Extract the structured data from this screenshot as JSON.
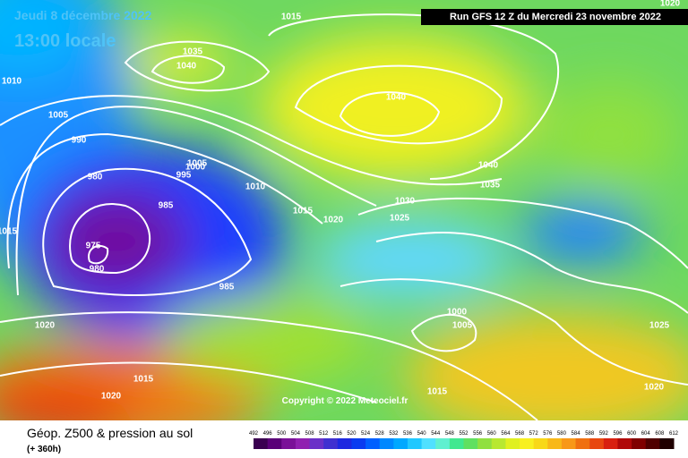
{
  "header": {
    "date": "Jeudi 8 décembre 2022",
    "time": "13:00 locale",
    "run": "Run GFS 12 Z du Mercredi 23 novembre 2022"
  },
  "copyright": "Copyright © 2022 Meteociel.fr",
  "footer": {
    "title": "Géop. Z500 & pression au sol",
    "lead": "(+ 360h)"
  },
  "legend": {
    "ticks": [
      492,
      496,
      500,
      504,
      508,
      512,
      516,
      520,
      524,
      528,
      532,
      536,
      540,
      544,
      548,
      552,
      556,
      560,
      564,
      568,
      572,
      576,
      580,
      584,
      588,
      592,
      596,
      600,
      604,
      608,
      612
    ]
  },
  "isobar_labels": [
    "1010",
    "1005",
    "990",
    "980",
    "975",
    "980",
    "985",
    "985",
    "995",
    "1000",
    "1005",
    "1010",
    "1015",
    "1020",
    "1025",
    "1030",
    "1035",
    "1040",
    "1035",
    "1040",
    "1040",
    "1015",
    "1020",
    "1000",
    "1005",
    "1025",
    "1020",
    "1015",
    "1015",
    "1020",
    "1020",
    "1015"
  ]
}
